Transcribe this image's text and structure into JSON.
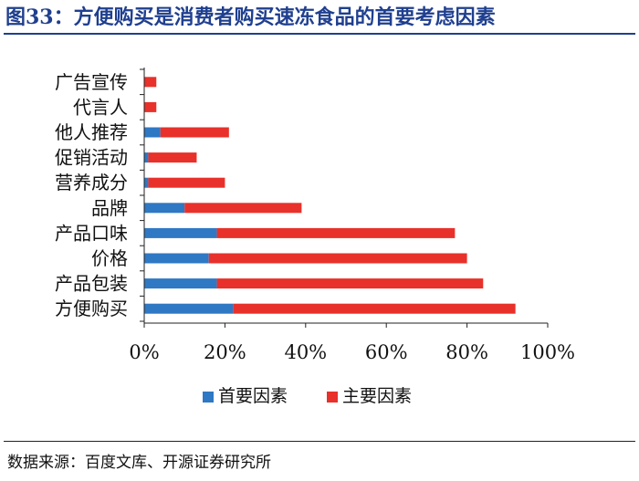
{
  "header": {
    "title": "图33：方便购买是消费者购买速冻食品的首要考虑因素"
  },
  "chart_data": {
    "type": "bar",
    "orientation": "horizontal",
    "stacked": true,
    "categories": [
      "广告宣传",
      "代言人",
      "他人推荐",
      "促销活动",
      "营养成分",
      "品牌",
      "产品口味",
      "价格",
      "产品包装",
      "方便购买"
    ],
    "series": [
      {
        "name": "首要因素",
        "color": "#2f78c4",
        "values": [
          0,
          0,
          4,
          1,
          1,
          10,
          18,
          16,
          18,
          22
        ]
      },
      {
        "name": "主要因素",
        "color": "#e8312a",
        "values": [
          3,
          3,
          17,
          12,
          19,
          29,
          59,
          64,
          66,
          70
        ]
      }
    ],
    "x_ticks": [
      "0%",
      "20%",
      "40%",
      "60%",
      "80%",
      "100%"
    ],
    "xlim": [
      0,
      100
    ],
    "grid": false,
    "legend_position": "bottom"
  },
  "footer": {
    "source_label": "数据来源：",
    "source_text": "百度文库、开源证券研究所"
  }
}
